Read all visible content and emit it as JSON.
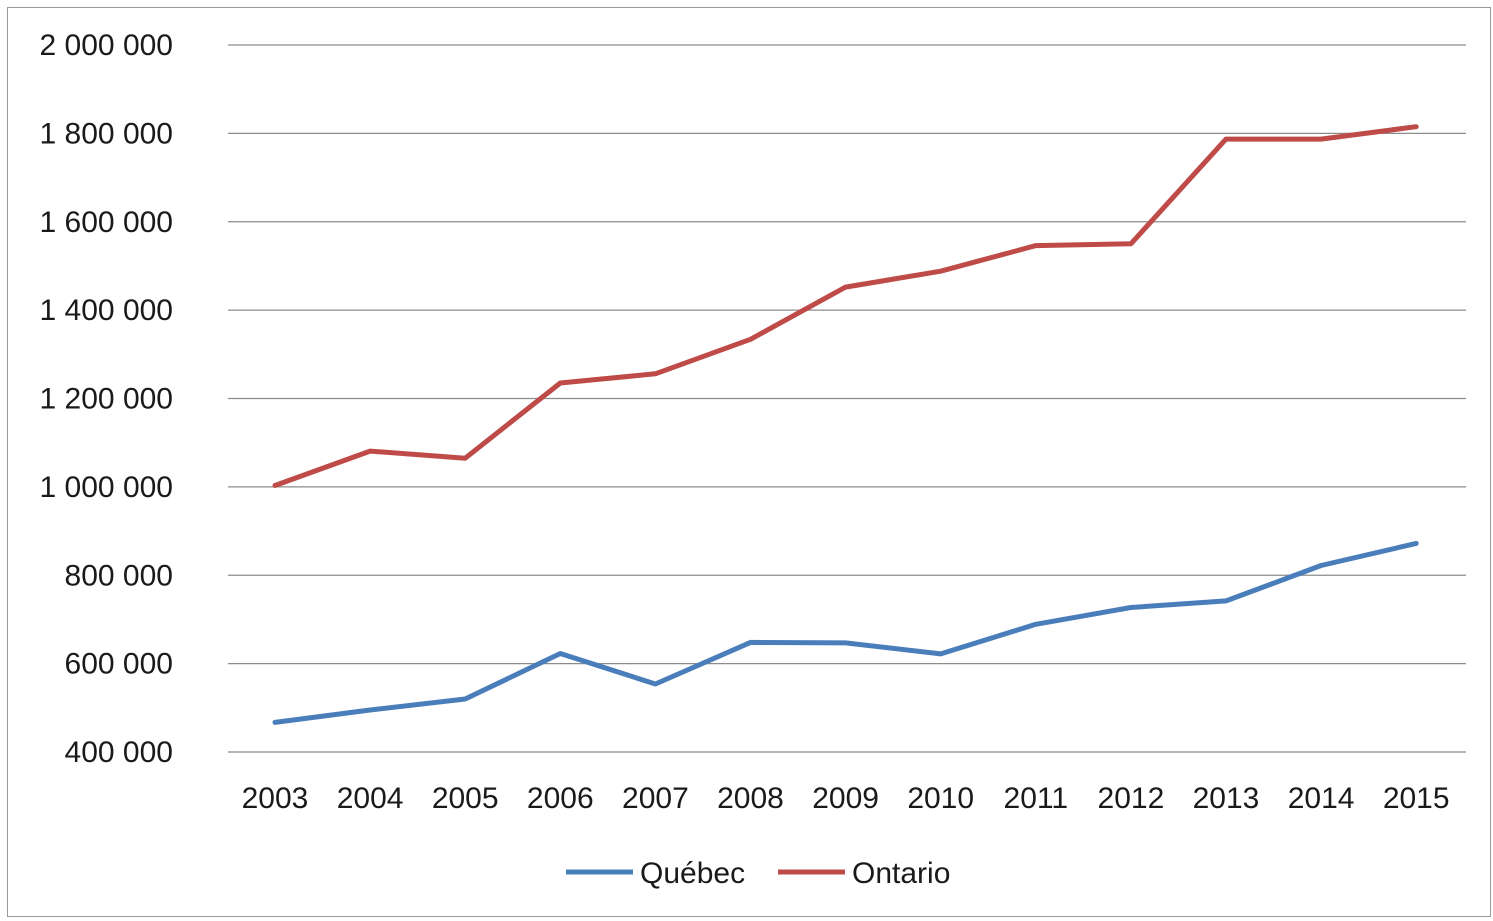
{
  "chart_data": {
    "type": "line",
    "title": "",
    "xlabel": "",
    "ylabel": "",
    "categories": [
      "2003",
      "2004",
      "2005",
      "2006",
      "2007",
      "2008",
      "2009",
      "2010",
      "2011",
      "2012",
      "2013",
      "2014",
      "2015"
    ],
    "y_ticks": [
      400000,
      600000,
      800000,
      1000000,
      1200000,
      1400000,
      1600000,
      1800000,
      2000000
    ],
    "y_tick_labels": [
      "400 000",
      "600 000",
      "800 000",
      "1 000 000",
      "1 200 000",
      "1 400 000",
      "1 600 000",
      "1 800 000",
      "2 000 000"
    ],
    "ylim": [
      400000,
      2000000
    ],
    "grid": "horizontal",
    "legend_position": "bottom",
    "series": [
      {
        "name": "Québec",
        "color": "#4a7ebb",
        "values": [
          467000,
          495000,
          520000,
          623000,
          554000,
          648000,
          647000,
          622000,
          689000,
          727000,
          742000,
          822000,
          872000
        ]
      },
      {
        "name": "Ontario",
        "color": "#be4b48",
        "values": [
          1003000,
          1081000,
          1065000,
          1235000,
          1256000,
          1334000,
          1452000,
          1488000,
          1546000,
          1550000,
          1787000,
          1787000,
          1815000
        ]
      }
    ]
  }
}
